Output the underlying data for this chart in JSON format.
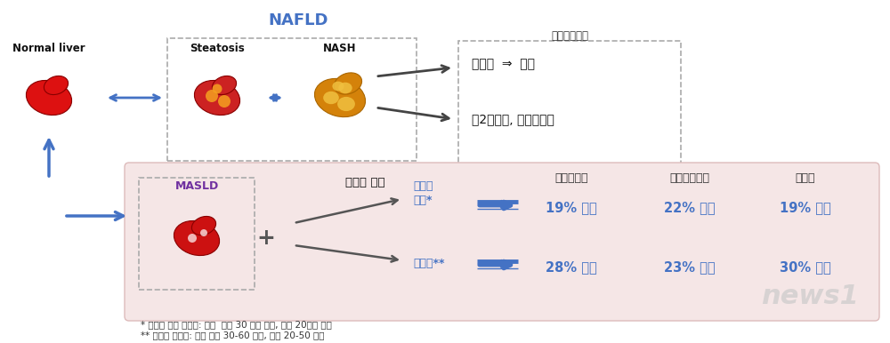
{
  "bg_color": "#ffffff",
  "nafld_label": "NAFLD",
  "nafld_color": "#4472C4",
  "normal_liver_label": "Normal liver",
  "steatosis_label": "Steatosis",
  "nash_label": "NASH",
  "prev_research_label": "이전연구보고",
  "cirrhosis_label": "간경화",
  "arrow_right_label": "⇒",
  "liver_cancer_label": "간암",
  "diabetes_label": "제2형당뇨, 심혈관질환",
  "masld_label": "MASLD",
  "masld_color": "#7030A0",
  "alcohol_label": "알코올 섭취",
  "cvd_header": "심혈관질환",
  "cad_header": "관상동맥질환",
  "stroke_header": "뇌졸중",
  "moderate_below_label": "중등도\n이하*",
  "moderate_label": "중등도**",
  "moderate_below_color": "#4472C4",
  "moderate_color": "#4472C4",
  "row1_cvd": "19% 증가",
  "row1_cad": "22% 증가",
  "row1_stroke": "19% 증가",
  "row2_cvd": "28% 증가",
  "row2_cad": "23% 증가",
  "row2_stroke": "30% 증가",
  "result_color": "#4472C4",
  "footnote1": "* 중등도 이하 알코올: 남자  하루 30 그램 미만, 여자 20그램 미만",
  "footnote2": "** 중등도 알코올: 남자 하루 30-60 그램, 여자 20-50 그램",
  "footnote_color": "#333333",
  "dashed_box_color": "#999999",
  "pink_bg": "#f5e6e6",
  "header_color": "#333333",
  "up_arrow_color": "#4472C4",
  "news1_color": "#cccccc"
}
